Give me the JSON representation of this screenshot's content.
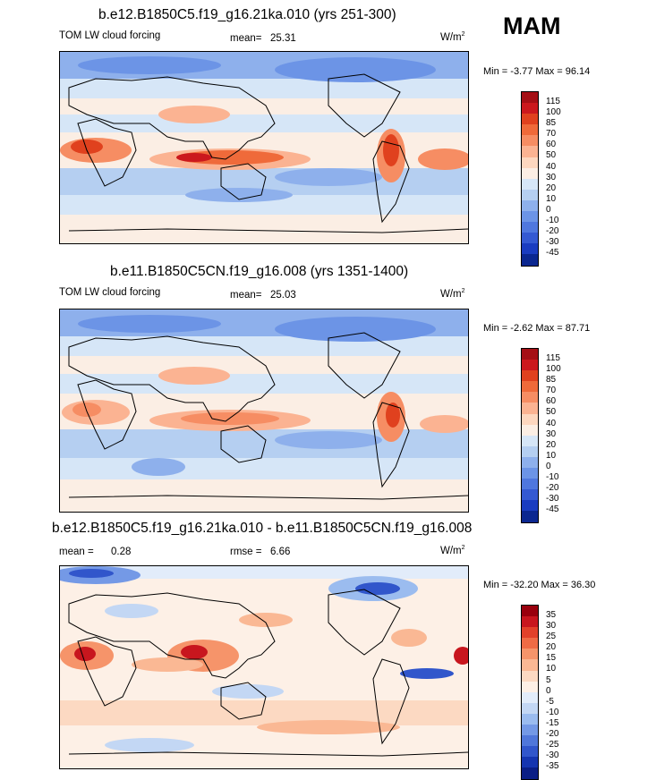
{
  "season_label": "MAM",
  "panels": [
    {
      "title": "b.e12.B1850C5.f19_g16.21ka.010 (yrs 251-300)",
      "left_text": "TOM LW cloud forcing",
      "mean_label": "mean=",
      "mean_value": "25.31",
      "units": "W/m",
      "units_sup": "2",
      "min_label": "Min =",
      "min_value": "-3.77",
      "max_label": "Max =",
      "max_value": "96.14",
      "colorbar": {
        "levels": [
          "115",
          "100",
          "85",
          "70",
          "60",
          "50",
          "40",
          "30",
          "20",
          "10",
          "0",
          "-10",
          "-20",
          "-30",
          "-45"
        ],
        "colors": [
          "#a50f15",
          "#cb181d",
          "#e0411e",
          "#ef6a3a",
          "#f68d63",
          "#fbb392",
          "#fdd7bf",
          "#fbeee4",
          "#d6e6f7",
          "#b5cff1",
          "#8eb0ec",
          "#6c94e6",
          "#4f77de",
          "#3459d2",
          "#1a3cc0",
          "#0b2790"
        ]
      }
    },
    {
      "title": "b.e11.B1850C5CN.f19_g16.008 (yrs 1351-1400)",
      "left_text": "TOM LW cloud forcing",
      "mean_label": "mean=",
      "mean_value": "25.03",
      "units": "W/m",
      "units_sup": "2",
      "min_label": "Min =",
      "min_value": "-2.62",
      "max_label": "Max =",
      "max_value": "87.71",
      "colorbar": {
        "levels": [
          "115",
          "100",
          "85",
          "70",
          "60",
          "50",
          "40",
          "30",
          "20",
          "10",
          "0",
          "-10",
          "-20",
          "-30",
          "-45"
        ],
        "colors": [
          "#a50f15",
          "#cb181d",
          "#e0411e",
          "#ef6a3a",
          "#f68d63",
          "#fbb392",
          "#fdd7bf",
          "#fbeee4",
          "#d6e6f7",
          "#b5cff1",
          "#8eb0ec",
          "#6c94e6",
          "#4f77de",
          "#3459d2",
          "#1a3cc0",
          "#0b2790"
        ]
      }
    },
    {
      "title": "b.e12.B1850C5.f19_g16.21ka.010 - b.e11.B1850C5CN.f19_g16.008",
      "mean_label": "mean =",
      "mean_value": "0.28",
      "rmse_label": "rmse =",
      "rmse_value": "6.66",
      "units": "W/m",
      "units_sup": "2",
      "min_label": "Min =",
      "min_value": "-32.20",
      "max_label": "Max =",
      "max_value": "36.30",
      "colorbar": {
        "levels": [
          "35",
          "30",
          "25",
          "20",
          "15",
          "10",
          "5",
          "0",
          "-5",
          "-10",
          "-15",
          "-20",
          "-25",
          "-30",
          "-35"
        ],
        "colors": [
          "#99000d",
          "#c8161e",
          "#e2412a",
          "#ef6b45",
          "#f6946a",
          "#fab894",
          "#fcd9c2",
          "#fdf0e6",
          "#e2ecfa",
          "#c3d7f4",
          "#9bbcef",
          "#7499e6",
          "#5077da",
          "#3156cb",
          "#1535b0",
          "#0a1e85"
        ]
      }
    }
  ]
}
